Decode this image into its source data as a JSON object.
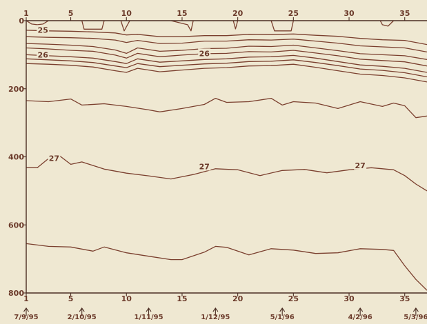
{
  "chart_data": {
    "type": "line",
    "title": "",
    "xlabel": "",
    "ylabel": "",
    "x_ticks": [
      1,
      5,
      10,
      15,
      20,
      25,
      30,
      35
    ],
    "xlim": [
      1,
      37
    ],
    "ylim": [
      0,
      800
    ],
    "y_ticks": [
      0,
      200,
      400,
      600,
      800
    ],
    "y_inverted": true,
    "grid": false,
    "date_markers": [
      {
        "station": 1,
        "label": "7/9/95"
      },
      {
        "station": 6,
        "label": "2/10/95"
      },
      {
        "station": 12,
        "label": "1/11/95"
      },
      {
        "station": 18,
        "label": "1/12/95"
      },
      {
        "station": 24,
        "label": "5/1/96"
      },
      {
        "station": 31,
        "label": "4/2/96"
      },
      {
        "station": 36,
        "label": "5/3/96"
      }
    ],
    "series": [
      {
        "name": "25",
        "x": [
          1,
          3,
          5,
          7,
          9,
          10,
          11,
          13,
          15,
          17,
          19,
          21,
          23,
          25,
          27,
          29,
          31,
          33,
          35,
          37
        ],
        "values": [
          28,
          30,
          31,
          33,
          36,
          42,
          40,
          47,
          47,
          44,
          44,
          40,
          41,
          39,
          43,
          46,
          52,
          56,
          58,
          70
        ]
      },
      {
        "name": "",
        "x": [
          1,
          3,
          5,
          7,
          9,
          10,
          11,
          13,
          15,
          17,
          19,
          21,
          23,
          25,
          27,
          29,
          31,
          33,
          35,
          37
        ],
        "values": [
          47,
          49,
          50,
          52,
          57,
          64,
          58,
          67,
          66,
          60,
          60,
          56,
          57,
          54,
          60,
          66,
          74,
          77,
          80,
          92
        ]
      },
      {
        "name": "",
        "x": [
          1,
          3,
          5,
          7,
          9,
          10,
          11,
          13,
          15,
          17,
          19,
          21,
          23,
          25,
          27,
          29,
          31,
          33,
          35,
          37
        ],
        "values": [
          67,
          69,
          72,
          76,
          86,
          96,
          80,
          90,
          87,
          82,
          81,
          75,
          76,
          72,
          80,
          88,
          97,
          100,
          103,
          114
        ]
      },
      {
        "name": "",
        "x": [
          1,
          3,
          5,
          7,
          9,
          10,
          11,
          13,
          15,
          17,
          19,
          21,
          23,
          25,
          27,
          29,
          31,
          33,
          35,
          37
        ],
        "values": [
          80,
          83,
          87,
          90,
          101,
          110,
          96,
          106,
          101,
          97,
          96,
          91,
          92,
          87,
          95,
          103,
          113,
          117,
          121,
          133
        ]
      },
      {
        "name": "26",
        "x": [
          1,
          3,
          5,
          7,
          9,
          10,
          11,
          13,
          15,
          17,
          19,
          21,
          23,
          25,
          27,
          29,
          31,
          33,
          35,
          37
        ],
        "values": [
          100,
          103,
          106,
          110,
          120,
          126,
          112,
          122,
          118,
          114,
          112,
          107,
          106,
          102,
          110,
          120,
          130,
          134,
          140,
          152
        ]
      },
      {
        "name": "",
        "x": [
          1,
          3,
          5,
          7,
          9,
          10,
          11,
          13,
          15,
          17,
          19,
          21,
          23,
          25,
          27,
          29,
          31,
          33,
          35,
          37
        ],
        "values": [
          112,
          115,
          118,
          123,
          133,
          138,
          126,
          135,
          131,
          127,
          125,
          120,
          119,
          115,
          123,
          132,
          142,
          146,
          153,
          165
        ]
      },
      {
        "name": "",
        "x": [
          1,
          3,
          5,
          7,
          9,
          10,
          11,
          13,
          15,
          17,
          19,
          21,
          23,
          25,
          27,
          29,
          31,
          33,
          35,
          37
        ],
        "values": [
          126,
          128,
          131,
          136,
          147,
          152,
          140,
          150,
          145,
          140,
          138,
          133,
          132,
          128,
          137,
          147,
          157,
          161,
          168,
          180
        ]
      },
      {
        "name": "",
        "x": [
          1,
          3,
          5,
          6,
          8,
          10,
          12,
          13,
          15,
          17,
          18,
          19,
          21,
          23,
          24,
          25,
          27,
          29,
          31,
          33,
          34,
          35,
          36,
          37
        ],
        "values": [
          235,
          238,
          230,
          248,
          244,
          252,
          262,
          268,
          258,
          246,
          228,
          240,
          238,
          228,
          248,
          238,
          242,
          258,
          238,
          252,
          242,
          250,
          285,
          280
        ]
      },
      {
        "name": "27",
        "x": [
          1,
          2,
          3,
          4,
          5,
          6,
          8,
          10,
          12,
          14,
          16,
          18,
          20,
          22,
          24,
          26,
          28,
          30,
          32,
          34,
          35,
          36,
          37
        ],
        "values": [
          432,
          432,
          405,
          397,
          422,
          415,
          436,
          448,
          456,
          465,
          452,
          435,
          438,
          455,
          440,
          437,
          447,
          438,
          432,
          438,
          455,
          480,
          500
        ]
      },
      {
        "name": "",
        "x": [
          1,
          3,
          5,
          7,
          8,
          10,
          12,
          14,
          15,
          17,
          18,
          19,
          21,
          23,
          25,
          27,
          29,
          31,
          33,
          34,
          35,
          36,
          37
        ],
        "values": [
          655,
          663,
          665,
          677,
          665,
          682,
          692,
          702,
          702,
          680,
          663,
          666,
          688,
          670,
          674,
          684,
          682,
          670,
          672,
          675,
          720,
          760,
          792
        ]
      }
    ],
    "contour_labels": [
      {
        "text": "25",
        "station": 2.5,
        "depth": 27
      },
      {
        "text": "26",
        "station": 2.5,
        "depth": 100
      },
      {
        "text": "26",
        "station": 17,
        "depth": 96
      },
      {
        "text": "27",
        "station": 3.5,
        "depth": 404
      },
      {
        "text": "27",
        "station": 17,
        "depth": 428
      },
      {
        "text": "27",
        "station": 31,
        "depth": 425
      }
    ],
    "surface_features": [
      {
        "x": [
          1,
          1.5,
          2,
          2.5,
          3
        ],
        "values": [
          0,
          10,
          12,
          10,
          0
        ]
      },
      {
        "x": [
          6,
          6.2,
          7.8,
          8
        ],
        "values": [
          0,
          25,
          25,
          0
        ]
      },
      {
        "x": [
          9.5,
          9.8,
          10.3
        ],
        "values": [
          0,
          30,
          0
        ]
      },
      {
        "x": [
          14,
          15.5,
          15.8,
          16
        ],
        "values": [
          0,
          12,
          30,
          0
        ]
      },
      {
        "x": [
          19.6,
          19.8,
          20
        ],
        "values": [
          0,
          24,
          0
        ]
      },
      {
        "x": [
          23,
          23.3,
          24.8,
          25
        ],
        "values": [
          0,
          30,
          30,
          0
        ]
      },
      {
        "x": [
          32.8,
          33,
          33.5,
          34
        ],
        "values": [
          0,
          12,
          16,
          0
        ]
      }
    ]
  }
}
